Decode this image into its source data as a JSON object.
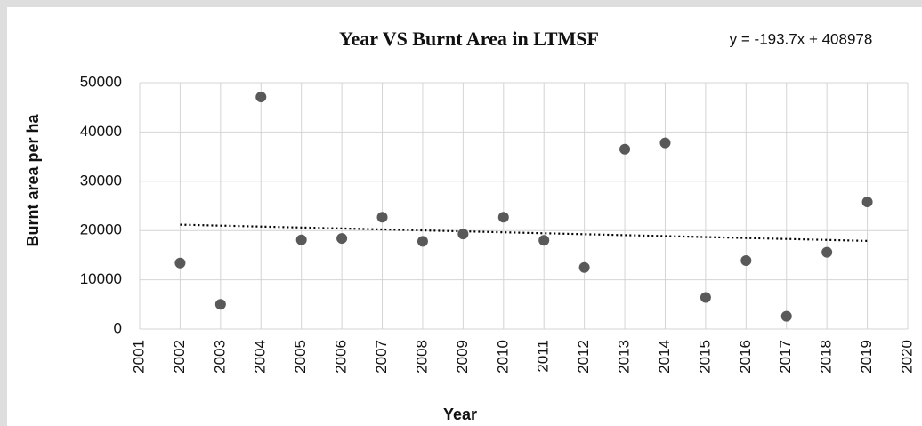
{
  "chart_data": {
    "type": "scatter",
    "title": "Year VS Burnt Area in LTMSF",
    "x_label": "Year",
    "y_label": "Burnt area per ha",
    "x": [
      2002,
      2003,
      2004,
      2005,
      2006,
      2007,
      2008,
      2009,
      2010,
      2011,
      2012,
      2013,
      2014,
      2015,
      2016,
      2017,
      2018,
      2019
    ],
    "values": [
      13400,
      5000,
      47100,
      18100,
      18400,
      22700,
      17800,
      19300,
      22700,
      18000,
      12500,
      36500,
      37800,
      6400,
      13900,
      2600,
      15600,
      25800
    ],
    "color": "#595959",
    "xlim": [
      2001,
      2020
    ],
    "xticks": [
      2001,
      2002,
      2003,
      2004,
      2005,
      2006,
      2007,
      2008,
      2009,
      2010,
      2011,
      2012,
      2013,
      2014,
      2015,
      2016,
      2017,
      2018,
      2019,
      2020
    ],
    "ylim": [
      0,
      50000
    ],
    "yticks": [
      0,
      10000,
      20000,
      30000,
      40000,
      50000
    ],
    "grid": true,
    "trendline": {
      "slope": -193.7,
      "intercept": 408978,
      "label": "y = -193.7x + 408978",
      "color": "#000000"
    }
  }
}
